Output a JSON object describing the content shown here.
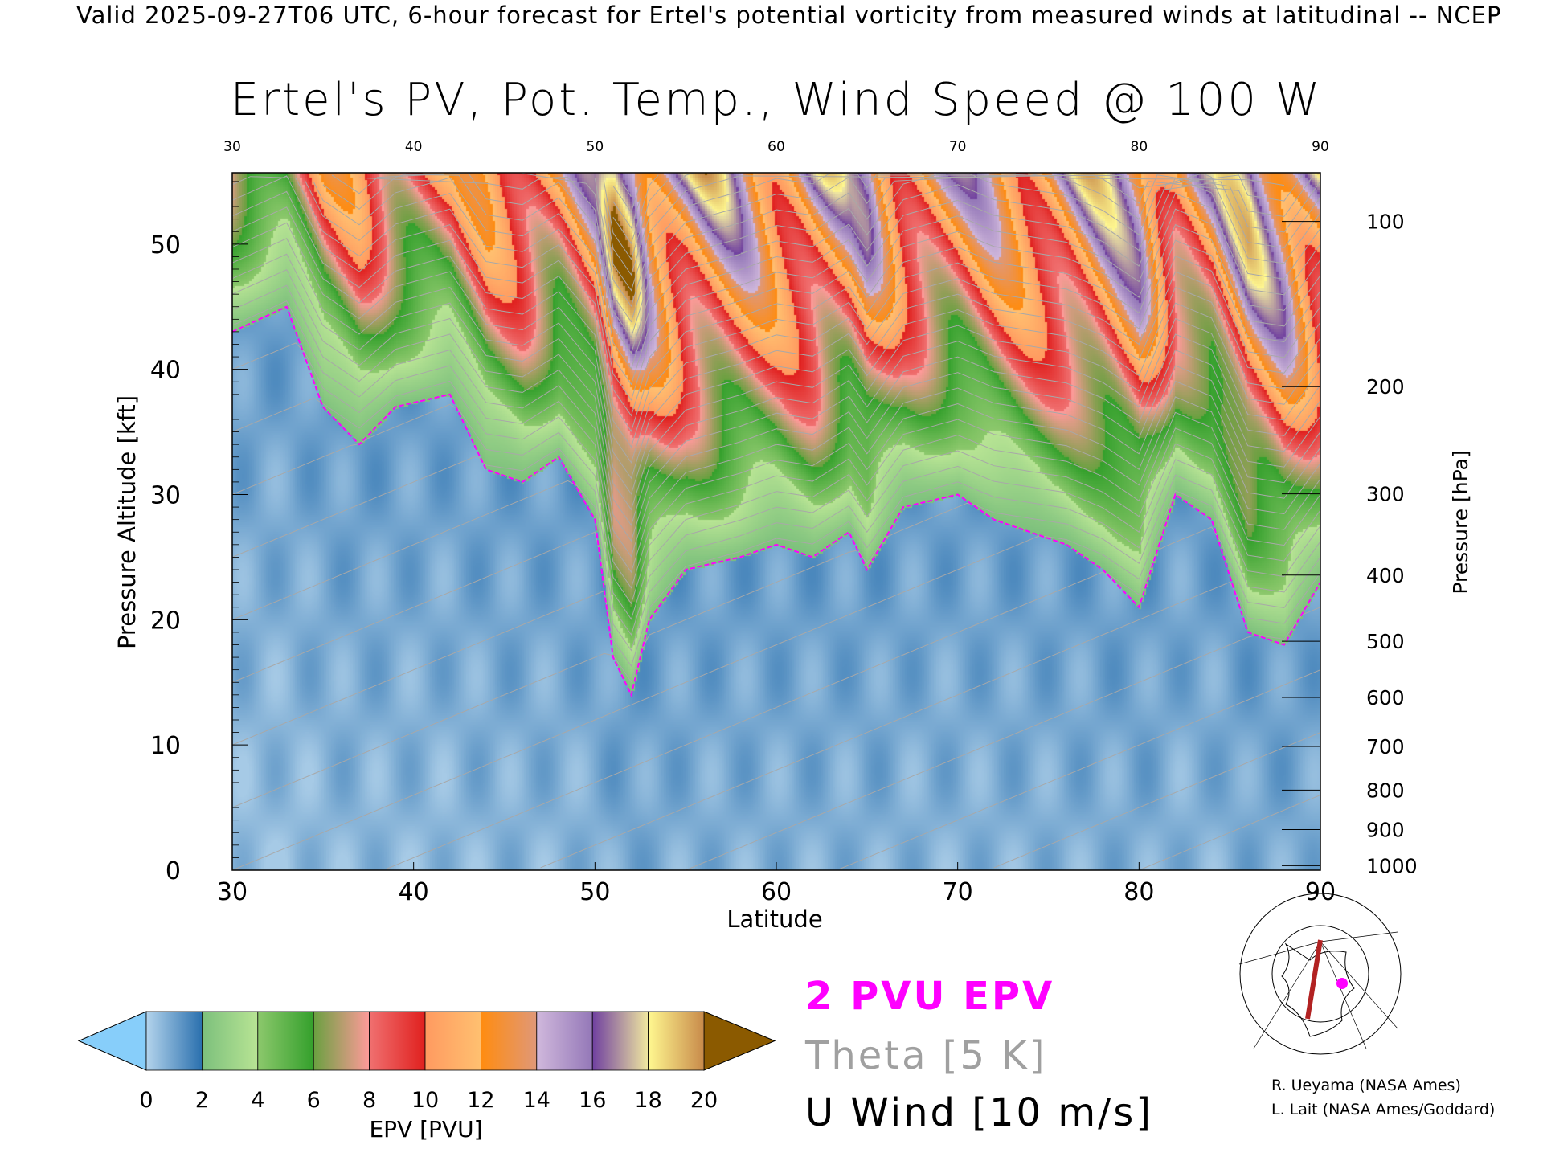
{
  "header": {
    "top_title": "Valid 2025-09-27T06 UTC, 6-hour forecast for Ertel's potential vorticity from measured winds at latitudinal -- NCEP",
    "main_title": "Ertel's PV, Pot. Temp., Wind Speed @ 100 W"
  },
  "legend": {
    "pv_line": "2 PVU EPV",
    "theta": "Theta [5 K]",
    "wind": "U Wind [10 m/s]"
  },
  "credits": [
    "R. Ueyama (NASA Ames)",
    "L. Lait (NASA Ames/Goddard)"
  ],
  "colors": {
    "pv_contour": "#ff00ff",
    "theta": "#a8a8a8",
    "map_track": "#b22222",
    "map_dot": "#ff00ff"
  },
  "chart_data": {
    "type": "heatmap",
    "title": "Ertel's PV, Pot. Temp., Wind Speed @ 100 W",
    "xlabel": "Latitude",
    "ylabel": "Pressure Altitude [kft]",
    "y2label": "Pressure [hPa]",
    "xlim": [
      30,
      90
    ],
    "ylim": [
      0,
      55.7
    ],
    "x_ticks": [
      "30",
      "40",
      "50",
      "60",
      "70",
      "80",
      "90"
    ],
    "top_ticks": [
      "30",
      "40",
      "50",
      "60",
      "70",
      "80",
      "90"
    ],
    "y_ticks": [
      "0",
      "10",
      "20",
      "30",
      "40",
      "50"
    ],
    "pressure_ticks": [
      "100",
      "200",
      "300",
      "400",
      "500",
      "600",
      "700",
      "800",
      "900",
      "1000"
    ],
    "colorbar": {
      "label": "EPV [PVU]",
      "ticks": [
        "0",
        "2",
        "4",
        "6",
        "8",
        "10",
        "12",
        "14",
        "16",
        "18",
        "20"
      ],
      "under_color": "#87cefa",
      "over_color": "#8b5a00",
      "segments": [
        {
          "from": 0,
          "to": 2,
          "c0": "#b4d4ec",
          "c1": "#2a70ae"
        },
        {
          "from": 2,
          "to": 4,
          "c0": "#7cc07c",
          "c1": "#b8e494"
        },
        {
          "from": 4,
          "to": 6,
          "c0": "#8cc86c",
          "c1": "#34a02c"
        },
        {
          "from": 6,
          "to": 8,
          "c0": "#6aa040",
          "c1": "#ff9a9a"
        },
        {
          "from": 8,
          "to": 10,
          "c0": "#f07070",
          "c1": "#e0201e"
        },
        {
          "from": 10,
          "to": 12,
          "c0": "#ff9a60",
          "c1": "#ffc070"
        },
        {
          "from": 12,
          "to": 14,
          "c0": "#ff8c10",
          "c1": "#e09878"
        },
        {
          "from": 14,
          "to": 16,
          "c0": "#d0b8dc",
          "c1": "#9478b8"
        },
        {
          "from": 16,
          "to": 18,
          "c0": "#7040a0",
          "c1": "#f0e8a0"
        },
        {
          "from": 18,
          "to": 20,
          "c0": "#fff890",
          "c1": "#c88a4a"
        }
      ]
    },
    "pv2_contour": {
      "label": "2 PVU EPV",
      "lat": [
        30,
        33,
        35,
        37,
        39,
        42,
        44,
        46,
        48,
        50,
        51,
        52,
        53,
        55,
        58,
        60,
        62,
        64,
        65,
        67,
        70,
        72,
        74,
        76,
        78,
        80,
        82,
        84,
        86,
        88,
        90
      ],
      "kft": [
        43,
        45,
        37,
        34,
        37,
        38,
        32,
        31,
        33,
        28,
        17,
        14,
        20,
        24,
        25,
        26,
        25,
        27,
        24,
        29,
        30,
        28,
        27,
        26,
        24,
        21,
        30,
        28,
        19,
        18,
        23
      ]
    },
    "theta_interval_K": 5
  }
}
